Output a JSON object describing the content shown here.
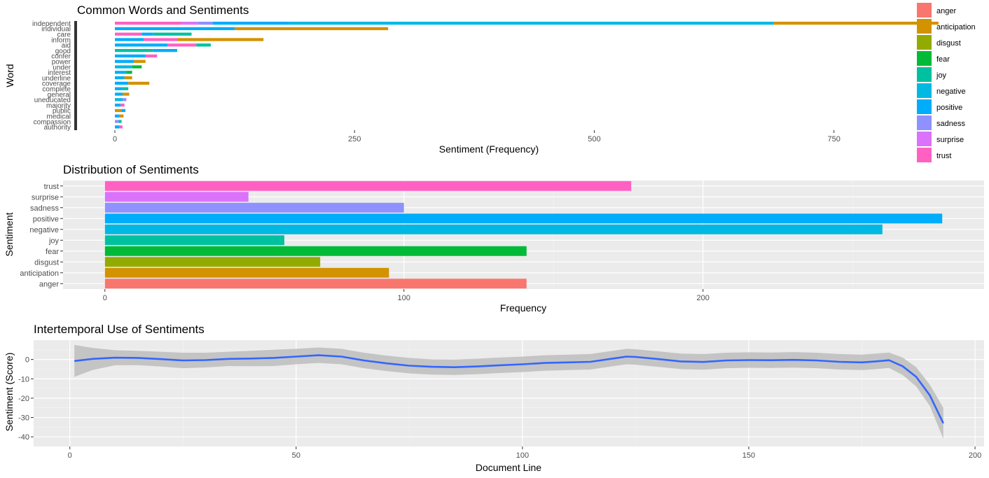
{
  "colors": {
    "panel_bg": "#EBEBEB",
    "grid_major": "#FFFFFF",
    "smooth_line": "#3366FF",
    "ribbon": "#BDBDBD",
    "tick_text": "#4D4D4D"
  },
  "legend": {
    "items": [
      {
        "label": "anger",
        "color": "#F8766D"
      },
      {
        "label": "anticipation",
        "color": "#D39200"
      },
      {
        "label": "disgust",
        "color": "#93AA00"
      },
      {
        "label": "fear",
        "color": "#00BA38"
      },
      {
        "label": "joy",
        "color": "#00C19F"
      },
      {
        "label": "negative",
        "color": "#00B9E3"
      },
      {
        "label": "positive",
        "color": "#00ADFA"
      },
      {
        "label": "sadness",
        "color": "#8F91FF"
      },
      {
        "label": "surprise",
        "color": "#DB72FB"
      },
      {
        "label": "trust",
        "color": "#FF61C3"
      }
    ]
  },
  "chart_data": [
    {
      "type": "bar",
      "orientation": "horizontal",
      "stacked": true,
      "title": "Common Words and Sentiments",
      "xlabel": "Sentiment (Frequency)",
      "ylabel": "Word",
      "xlim": [
        0,
        900
      ],
      "xticks": [
        0,
        250,
        500,
        750
      ],
      "ytick_labels_legible": [
        "independent",
        "individual",
        "care",
        "inform",
        "aid",
        "good",
        "confer",
        "power",
        "under",
        "interest",
        "underline",
        "coverage",
        "complete",
        "general",
        "uneducated",
        "majority",
        "public",
        "medical",
        "compassion",
        "authority"
      ],
      "bars": [
        {
          "category": "independent",
          "segments": [
            {
              "sentiment": "trust",
              "value": 70
            },
            {
              "sentiment": "surprise",
              "value": 16
            },
            {
              "sentiment": "sadness",
              "value": 16
            },
            {
              "sentiment": "positive",
              "value": 80
            },
            {
              "sentiment": "negative",
              "value": 505
            },
            {
              "sentiment": "anticipation",
              "value": 172
            }
          ]
        },
        {
          "category": "individual",
          "segments": [
            {
              "sentiment": "positive",
              "value": 125
            },
            {
              "sentiment": "anticipation",
              "value": 160
            }
          ]
        },
        {
          "category": "care",
          "segments": [
            {
              "sentiment": "trust",
              "value": 28
            },
            {
              "sentiment": "positive",
              "value": 12
            },
            {
              "sentiment": "joy",
              "value": 40
            }
          ]
        },
        {
          "category": "inform",
          "segments": [
            {
              "sentiment": "positive",
              "value": 30
            },
            {
              "sentiment": "trust",
              "value": 35
            },
            {
              "sentiment": "anticipation",
              "value": 90
            }
          ]
        },
        {
          "category": "aid",
          "segments": [
            {
              "sentiment": "positive",
              "value": 55
            },
            {
              "sentiment": "trust",
              "value": 30
            },
            {
              "sentiment": "joy",
              "value": 15
            }
          ]
        },
        {
          "category": "good",
          "segments": [
            {
              "sentiment": "joy",
              "value": 40
            },
            {
              "sentiment": "positive",
              "value": 25
            }
          ]
        },
        {
          "category": "confer",
          "segments": [
            {
              "sentiment": "positive",
              "value": 32
            },
            {
              "sentiment": "trust",
              "value": 12
            }
          ]
        },
        {
          "category": "power",
          "segments": [
            {
              "sentiment": "positive",
              "value": 20
            },
            {
              "sentiment": "anticipation",
              "value": 12
            }
          ]
        },
        {
          "category": "under",
          "segments": [
            {
              "sentiment": "negative",
              "value": 18
            },
            {
              "sentiment": "fear",
              "value": 10
            }
          ]
        },
        {
          "category": "interest",
          "segments": [
            {
              "sentiment": "positive",
              "value": 12
            },
            {
              "sentiment": "fear",
              "value": 6
            }
          ]
        },
        {
          "category": "underline",
          "segments": [
            {
              "sentiment": "positive",
              "value": 10
            },
            {
              "sentiment": "anticipation",
              "value": 8
            }
          ]
        },
        {
          "category": "coverage",
          "segments": [
            {
              "sentiment": "positive",
              "value": 14
            },
            {
              "sentiment": "anticipation",
              "value": 22
            }
          ]
        },
        {
          "category": "complete",
          "segments": [
            {
              "sentiment": "positive",
              "value": 8
            },
            {
              "sentiment": "joy",
              "value": 6
            }
          ]
        },
        {
          "category": "general",
          "segments": [
            {
              "sentiment": "positive",
              "value": 8
            },
            {
              "sentiment": "anticipation",
              "value": 7
            }
          ]
        },
        {
          "category": "uneducated",
          "segments": [
            {
              "sentiment": "negative",
              "value": 8
            },
            {
              "sentiment": "sadness",
              "value": 4
            }
          ]
        },
        {
          "category": "majority",
          "segments": [
            {
              "sentiment": "positive",
              "value": 6
            },
            {
              "sentiment": "trust",
              "value": 4
            }
          ]
        },
        {
          "category": "public",
          "segments": [
            {
              "sentiment": "anticipation",
              "value": 7
            },
            {
              "sentiment": "positive",
              "value": 4
            }
          ]
        },
        {
          "category": "medical",
          "segments": [
            {
              "sentiment": "positive",
              "value": 5
            },
            {
              "sentiment": "anticipation",
              "value": 4
            }
          ]
        },
        {
          "category": "compassion",
          "segments": [
            {
              "sentiment": "sadness",
              "value": 4
            },
            {
              "sentiment": "joy",
              "value": 3
            }
          ]
        },
        {
          "category": "authority",
          "segments": [
            {
              "sentiment": "positive",
              "value": 5
            },
            {
              "sentiment": "trust",
              "value": 3
            }
          ]
        }
      ]
    },
    {
      "type": "bar",
      "orientation": "horizontal",
      "title": "Distribution of Sentiments",
      "xlabel": "Frequency",
      "ylabel": "Sentiment",
      "categories": [
        "anger",
        "anticipation",
        "disgust",
        "fear",
        "joy",
        "negative",
        "positive",
        "sadness",
        "surprise",
        "trust"
      ],
      "values": [
        141,
        95,
        72,
        141,
        60,
        260,
        280,
        100,
        48,
        176
      ],
      "xlim": [
        -14,
        294
      ],
      "xticks": [
        0,
        100,
        200
      ],
      "grid": true
    },
    {
      "type": "line",
      "title": "Intertemporal Use of Sentiments",
      "xlabel": "Document Line",
      "ylabel": "Sentiment (Score)",
      "xlim": [
        -8,
        202
      ],
      "ylim": [
        -45,
        10
      ],
      "xticks": [
        0,
        50,
        100,
        150,
        200
      ],
      "yticks": [
        -40,
        -30,
        -20,
        -10,
        0
      ],
      "grid": true,
      "series": [
        {
          "x": [
            1,
            5,
            10,
            15,
            20,
            25,
            30,
            35,
            40,
            45,
            50,
            55,
            60,
            65,
            70,
            75,
            80,
            85,
            90,
            95,
            100,
            105,
            110,
            115,
            120,
            123,
            125,
            130,
            135,
            140,
            145,
            150,
            155,
            160,
            165,
            170,
            175,
            178,
            181,
            184,
            187,
            190,
            193
          ],
          "y": [
            -0.8,
            0.3,
            0.9,
            0.8,
            0.2,
            -0.5,
            -0.3,
            0.3,
            0.5,
            0.8,
            1.5,
            2.2,
            1.5,
            -0.5,
            -2.0,
            -3.2,
            -3.8,
            -4.0,
            -3.6,
            -3.0,
            -2.5,
            -1.8,
            -1.5,
            -1.2,
            0.5,
            1.5,
            1.3,
            0.2,
            -1.0,
            -1.3,
            -0.5,
            -0.3,
            -0.4,
            -0.2,
            -0.5,
            -1.2,
            -1.5,
            -1.0,
            -0.4,
            -3.5,
            -9.0,
            -18.5,
            -33.0
          ],
          "ci_upper": [
            7.5,
            6.0,
            4.8,
            4.5,
            4.0,
            3.5,
            3.5,
            4.0,
            4.5,
            5.0,
            5.5,
            6.2,
            5.5,
            3.5,
            2.0,
            0.8,
            0.1,
            0.0,
            0.4,
            1.0,
            1.5,
            2.2,
            2.5,
            2.8,
            4.5,
            5.5,
            5.3,
            4.2,
            3.0,
            2.8,
            3.5,
            3.7,
            3.6,
            3.8,
            3.5,
            2.8,
            2.5,
            3.0,
            3.6,
            1.0,
            -4.0,
            -13.0,
            -25.0
          ],
          "ci_lower": [
            -9.0,
            -5.5,
            -3.0,
            -2.9,
            -3.6,
            -4.5,
            -4.1,
            -3.4,
            -3.5,
            -3.4,
            -2.5,
            -1.8,
            -2.5,
            -4.5,
            -6.0,
            -7.2,
            -7.8,
            -8.0,
            -7.6,
            -7.0,
            -6.5,
            -5.8,
            -5.5,
            -5.2,
            -3.5,
            -2.5,
            -2.7,
            -3.8,
            -5.0,
            -5.3,
            -4.5,
            -4.3,
            -4.4,
            -4.2,
            -4.5,
            -5.2,
            -5.5,
            -5.0,
            -4.4,
            -8.0,
            -14.0,
            -24.0,
            -41.0
          ]
        }
      ]
    }
  ]
}
